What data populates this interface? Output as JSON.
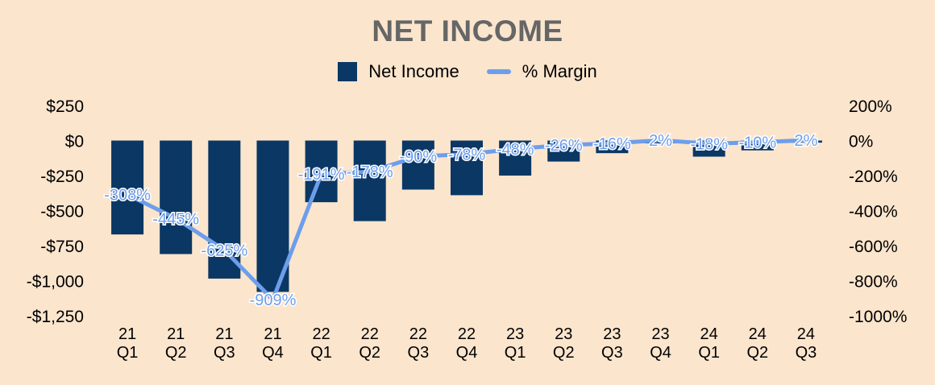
{
  "chart_data": {
    "type": "bar",
    "title": "NET INCOME",
    "categories": [
      "21 Q1",
      "21 Q2",
      "21 Q3",
      "21 Q4",
      "22 Q1",
      "22 Q2",
      "22 Q3",
      "22 Q4",
      "23 Q1",
      "23 Q2",
      "23 Q3",
      "23 Q4",
      "24 Q1",
      "24 Q2",
      "24 Q3"
    ],
    "series": [
      {
        "name": "Net Income",
        "type": "bar",
        "axis": "left",
        "color": "#0b3764",
        "values": [
          -670,
          -810,
          -985,
          -1080,
          -440,
          -575,
          -350,
          -390,
          -250,
          -150,
          -90,
          -20,
          -115,
          -70,
          -15
        ]
      },
      {
        "name": "% Margin",
        "type": "line",
        "axis": "right",
        "color": "#6d9eeb",
        "values": [
          -308,
          -445,
          -625,
          -909,
          -191,
          -178,
          -90,
          -78,
          -48,
          -26,
          -16,
          2,
          -18,
          -10,
          2
        ],
        "labels": [
          "-308%",
          "-445%",
          "-625%",
          "-909%",
          "-191%",
          "-178%",
          "-90%",
          "-78%",
          "-48%",
          "-26%",
          "-16%",
          "2%",
          "-18%",
          "-10%",
          "2%"
        ]
      }
    ],
    "y_left": {
      "ylim": [
        -1250,
        250
      ],
      "ticks": [
        250,
        0,
        -250,
        -500,
        -750,
        -1000,
        -1250
      ],
      "tick_labels": [
        "$250",
        "$0",
        "-$250",
        "-$500",
        "-$750",
        "-$1,000",
        "-$1,250"
      ]
    },
    "y_right": {
      "ylim": [
        -1000,
        200
      ],
      "ticks": [
        200,
        0,
        -200,
        -400,
        -600,
        -800,
        -1000
      ],
      "tick_labels": [
        "200%",
        "0%",
        "-200%",
        "-400%",
        "-600%",
        "-800%",
        "-1000%"
      ]
    },
    "legend_position": "top-center",
    "grid": false
  },
  "colors": {
    "background": "#fbe5cd",
    "bar": "#0b3764",
    "line": "#6d9eeb",
    "title": "#666666"
  }
}
